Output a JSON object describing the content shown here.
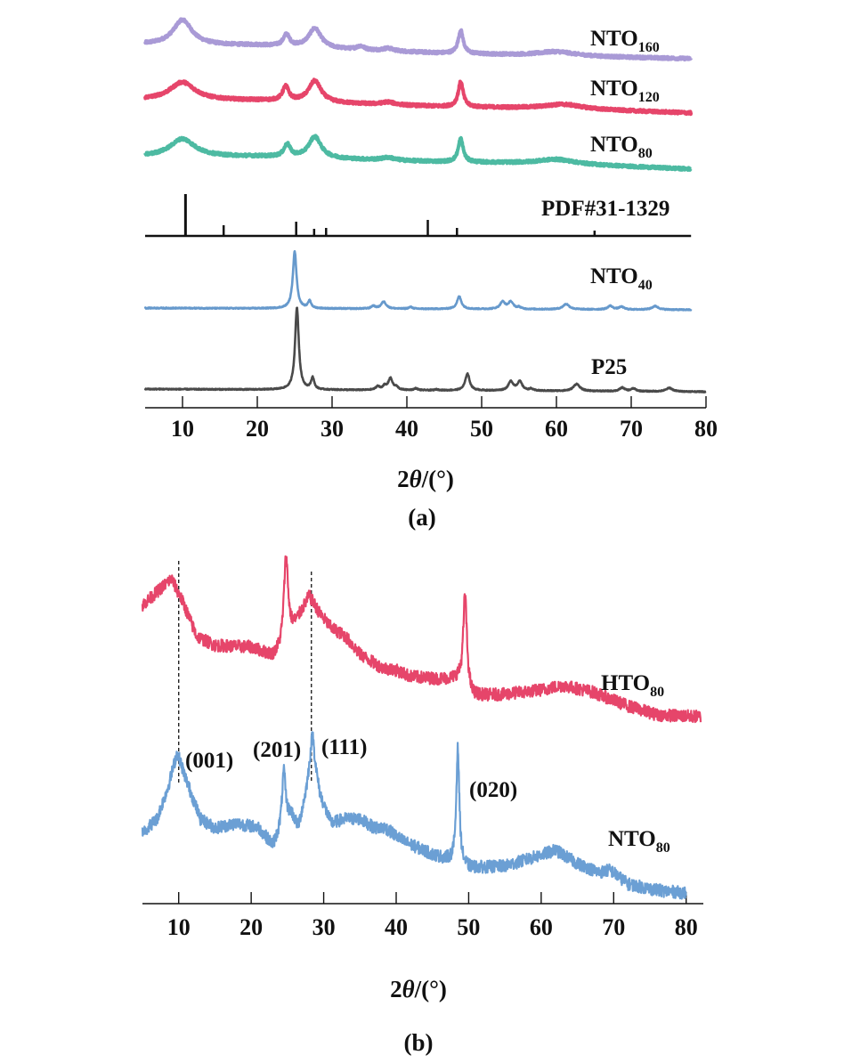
{
  "chart_data": [
    {
      "type": "line",
      "panel_caption": "(a)",
      "xlabel_main": "2",
      "xlabel_theta": "θ",
      "xlabel_unit": "/(°)",
      "xlim": [
        5,
        80
      ],
      "ylim": [
        0,
        460
      ],
      "ylabel": "",
      "xticks": [
        10,
        20,
        30,
        40,
        50,
        60,
        70,
        80
      ],
      "colors": {
        "NTO160": "#a99ad6",
        "NTO120": "#e6456a",
        "NTO80": "#4dbaa2",
        "PDF": "#111111",
        "NTO40": "#6699cc",
        "P25": "#4a4a4a"
      },
      "series": [
        {
          "name": "NTO",
          "sub": "160",
          "color": "#a99ad6",
          "xend": 78,
          "noise": 1.5,
          "background": [
            [
              5,
              408
            ],
            [
              20,
              407
            ],
            [
              30,
              403
            ],
            [
              45,
              398
            ],
            [
              60,
              395
            ],
            [
              78,
              392
            ]
          ],
          "peaks": [
            [
              10,
              28,
              1.5
            ],
            [
              23.9,
              13,
              0.5
            ],
            [
              27.7,
              22,
              1.0
            ],
            [
              33.8,
              4,
              0.6
            ],
            [
              37.5,
              3,
              0.8
            ],
            [
              47.2,
              26,
              0.4
            ],
            [
              60,
              5,
              3
            ]
          ]
        },
        {
          "name": "NTO",
          "sub": "120",
          "color": "#e6456a",
          "xend": 78,
          "noise": 1.5,
          "background": [
            [
              5,
              346
            ],
            [
              20,
              345
            ],
            [
              45,
              338
            ],
            [
              60,
              336
            ],
            [
              78,
              331
            ]
          ],
          "peaks": [
            [
              10,
              20,
              2
            ],
            [
              23.8,
              16,
              0.5
            ],
            [
              27.7,
              24,
              1
            ],
            [
              37.5,
              3,
              1
            ],
            [
              47.2,
              28,
              0.4
            ],
            [
              61,
              5,
              3
            ]
          ]
        },
        {
          "name": "NTO",
          "sub": "80",
          "color": "#4dbaa2",
          "xend": 78,
          "noise": 1.5,
          "background": [
            [
              5,
              282
            ],
            [
              20,
              282
            ],
            [
              45,
              276
            ],
            [
              60,
              274
            ],
            [
              78,
              268
            ]
          ],
          "peaks": [
            [
              10,
              20,
              2
            ],
            [
              24,
              14,
              0.5
            ],
            [
              27.7,
              24,
              1
            ],
            [
              37.5,
              3,
              1
            ],
            [
              47.2,
              26,
              0.4
            ],
            [
              60,
              5,
              3
            ]
          ]
        },
        {
          "name": "NTO",
          "sub": "40",
          "color": "#6699cc",
          "xend": 78,
          "noise": 0.6,
          "background": [
            [
              5,
              112
            ],
            [
              78,
              110
            ]
          ],
          "peaks": [
            [
              25.0,
              64,
              0.3
            ],
            [
              27.0,
              8,
              0.25
            ],
            [
              35.5,
              3,
              0.3
            ],
            [
              36.9,
              8,
              0.4
            ],
            [
              40.5,
              2,
              0.3
            ],
            [
              47.0,
              14,
              0.35
            ],
            [
              52.8,
              8,
              0.4
            ],
            [
              53.9,
              8,
              0.4
            ],
            [
              55,
              2,
              0.3
            ],
            [
              61.3,
              6,
              0.5
            ],
            [
              67.2,
              4,
              0.4
            ],
            [
              68.7,
              3,
              0.4
            ],
            [
              73.2,
              4,
              0.5
            ]
          ]
        },
        {
          "name": "P25",
          "sub": "",
          "color": "#4a4a4a",
          "xend": 80,
          "noise": 0.6,
          "background": [
            [
              5,
              21
            ],
            [
              80,
              18
            ]
          ],
          "peaks": [
            [
              25.3,
              92,
              0.3
            ],
            [
              27.4,
              13,
              0.25
            ],
            [
              36.1,
              4,
              0.3
            ],
            [
              37.0,
              4,
              0.3
            ],
            [
              37.8,
              13,
              0.35
            ],
            [
              38.6,
              3,
              0.3
            ],
            [
              41.2,
              2,
              0.3
            ],
            [
              44,
              1,
              0.3
            ],
            [
              48.1,
              19,
              0.35
            ],
            [
              53.9,
              10,
              0.4
            ],
            [
              55.1,
              10,
              0.4
            ],
            [
              56.6,
              2,
              0.3
            ],
            [
              62.7,
              8,
              0.5
            ],
            [
              68.8,
              4,
              0.4
            ],
            [
              70.3,
              3,
              0.4
            ],
            [
              75.1,
              4,
              0.5
            ]
          ]
        }
      ],
      "reference": {
        "name": "PDF#31-1329",
        "baseline": 193,
        "xend": 78,
        "sticks": [
          [
            10.4,
            47
          ],
          [
            15.5,
            12
          ],
          [
            25.2,
            16
          ],
          [
            27.6,
            8
          ],
          [
            29.2,
            9
          ],
          [
            42.8,
            18
          ],
          [
            46.7,
            9
          ],
          [
            65.1,
            6
          ]
        ]
      }
    },
    {
      "type": "line",
      "panel_caption": "(b)",
      "xlabel_main": "2",
      "xlabel_theta": "θ",
      "xlabel_unit": "/(°)",
      "xlim": [
        5,
        82
      ],
      "ylim": [
        0,
        400
      ],
      "ylabel": "",
      "xticks": [
        10,
        20,
        30,
        40,
        50,
        60,
        70,
        80
      ],
      "reference_lines": [
        10,
        28.3
      ],
      "series": [
        {
          "name": "HTO",
          "sub": "80",
          "color": "#e6456a",
          "xend": 82,
          "noise": 7,
          "background": [
            [
              5,
              335
            ],
            [
              7,
              350
            ],
            [
              9,
              365
            ],
            [
              10.5,
              340
            ],
            [
              12.5,
              300
            ],
            [
              15,
              290
            ],
            [
              20,
              288
            ],
            [
              23,
              278
            ],
            [
              24,
              285
            ],
            [
              26,
              312
            ],
            [
              28,
              345
            ],
            [
              29.5,
              325
            ],
            [
              31,
              310
            ],
            [
              33,
              300
            ],
            [
              35,
              280
            ],
            [
              38,
              265
            ],
            [
              40,
              262
            ],
            [
              42,
              255
            ],
            [
              46,
              252
            ],
            [
              48.5,
              252
            ],
            [
              50.5,
              233
            ],
            [
              55,
              235
            ],
            [
              60,
              240
            ],
            [
              63,
              245
            ],
            [
              67,
              238
            ],
            [
              72,
              222
            ],
            [
              76,
              212
            ],
            [
              82,
              210
            ]
          ],
          "peaks": [
            [
              24.8,
              95,
              0.35
            ],
            [
              49.5,
              105,
              0.3
            ]
          ]
        },
        {
          "name": "NTO",
          "sub": "80",
          "color": "#6b9fd4",
          "xend": 80,
          "noise": 7,
          "background": [
            [
              5,
              80
            ],
            [
              7,
              95
            ],
            [
              8.5,
              130
            ],
            [
              9.8,
              170
            ],
            [
              11,
              140
            ],
            [
              13,
              95
            ],
            [
              15,
              85
            ],
            [
              18,
              90
            ],
            [
              21,
              85
            ],
            [
              23,
              65
            ],
            [
              24,
              80
            ],
            [
              25.5,
              100
            ],
            [
              26.5,
              85
            ],
            [
              27.5,
              120
            ],
            [
              28.5,
              160
            ],
            [
              29.5,
              120
            ],
            [
              31,
              90
            ],
            [
              33,
              95
            ],
            [
              35,
              95
            ],
            [
              37,
              85
            ],
            [
              38.5,
              85
            ],
            [
              41,
              70
            ],
            [
              45,
              55
            ],
            [
              47.5,
              48
            ],
            [
              50,
              40
            ],
            [
              55,
              42
            ],
            [
              59,
              52
            ],
            [
              62,
              60
            ],
            [
              65,
              45
            ],
            [
              68,
              35
            ],
            [
              69.5,
              38
            ],
            [
              72,
              22
            ],
            [
              76,
              15
            ],
            [
              80,
              12
            ]
          ],
          "peaks": [
            [
              24.5,
              62,
              0.3
            ],
            [
              48.5,
              130,
              0.25
            ],
            [
              28.4,
              30,
              0.4
            ]
          ]
        }
      ],
      "annotations": [
        "(001)",
        "(201)",
        "(111)",
        "(020)"
      ]
    }
  ]
}
